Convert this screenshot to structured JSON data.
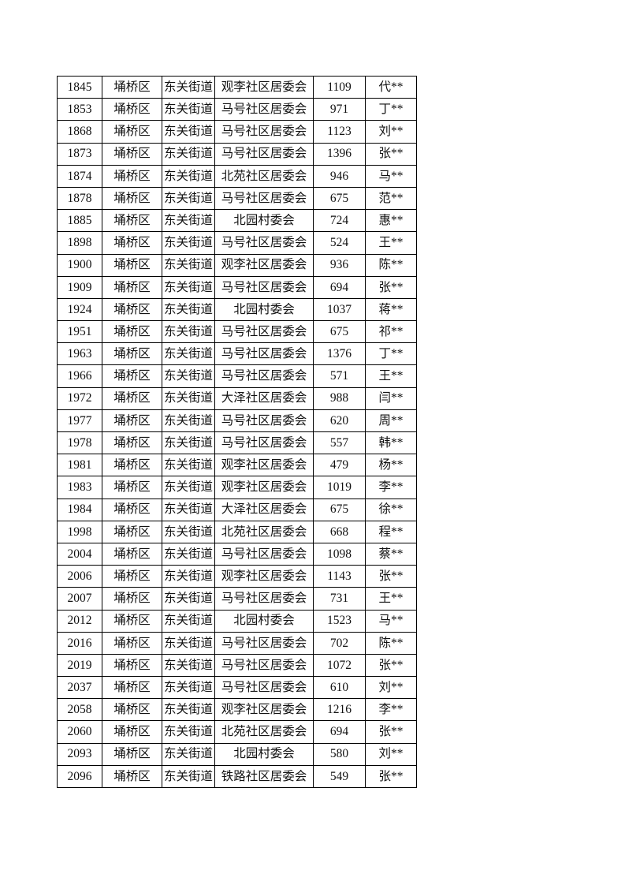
{
  "page": {
    "background_color": "#ffffff",
    "text_color": "#111111",
    "border_color": "#000000"
  },
  "table": {
    "column_names": [
      "serial-number",
      "district",
      "street",
      "community",
      "count",
      "masked-name"
    ],
    "rows": [
      [
        "1845",
        "埇桥区",
        "东关街道",
        "观李社区居委会",
        "1109",
        "代**"
      ],
      [
        "1853",
        "埇桥区",
        "东关街道",
        "马号社区居委会",
        "971",
        "丁**"
      ],
      [
        "1868",
        "埇桥区",
        "东关街道",
        "马号社区居委会",
        "1123",
        "刘**"
      ],
      [
        "1873",
        "埇桥区",
        "东关街道",
        "马号社区居委会",
        "1396",
        "张**"
      ],
      [
        "1874",
        "埇桥区",
        "东关街道",
        "北苑社区居委会",
        "946",
        "马**"
      ],
      [
        "1878",
        "埇桥区",
        "东关街道",
        "马号社区居委会",
        "675",
        "范**"
      ],
      [
        "1885",
        "埇桥区",
        "东关街道",
        "北园村委会",
        "724",
        "惠**"
      ],
      [
        "1898",
        "埇桥区",
        "东关街道",
        "马号社区居委会",
        "524",
        "王**"
      ],
      [
        "1900",
        "埇桥区",
        "东关街道",
        "观李社区居委会",
        "936",
        "陈**"
      ],
      [
        "1909",
        "埇桥区",
        "东关街道",
        "马号社区居委会",
        "694",
        "张**"
      ],
      [
        "1924",
        "埇桥区",
        "东关街道",
        "北园村委会",
        "1037",
        "蒋**"
      ],
      [
        "1951",
        "埇桥区",
        "东关街道",
        "马号社区居委会",
        "675",
        "祁**"
      ],
      [
        "1963",
        "埇桥区",
        "东关街道",
        "马号社区居委会",
        "1376",
        "丁**"
      ],
      [
        "1966",
        "埇桥区",
        "东关街道",
        "马号社区居委会",
        "571",
        "王**"
      ],
      [
        "1972",
        "埇桥区",
        "东关街道",
        "大泽社区居委会",
        "988",
        "闫**"
      ],
      [
        "1977",
        "埇桥区",
        "东关街道",
        "马号社区居委会",
        "620",
        "周**"
      ],
      [
        "1978",
        "埇桥区",
        "东关街道",
        "马号社区居委会",
        "557",
        "韩**"
      ],
      [
        "1981",
        "埇桥区",
        "东关街道",
        "观李社区居委会",
        "479",
        "杨**"
      ],
      [
        "1983",
        "埇桥区",
        "东关街道",
        "观李社区居委会",
        "1019",
        "李**"
      ],
      [
        "1984",
        "埇桥区",
        "东关街道",
        "大泽社区居委会",
        "675",
        "徐**"
      ],
      [
        "1998",
        "埇桥区",
        "东关街道",
        "北苑社区居委会",
        "668",
        "程**"
      ],
      [
        "2004",
        "埇桥区",
        "东关街道",
        "马号社区居委会",
        "1098",
        "蔡**"
      ],
      [
        "2006",
        "埇桥区",
        "东关街道",
        "观李社区居委会",
        "1143",
        "张**"
      ],
      [
        "2007",
        "埇桥区",
        "东关街道",
        "马号社区居委会",
        "731",
        "王**"
      ],
      [
        "2012",
        "埇桥区",
        "东关街道",
        "北园村委会",
        "1523",
        "马**"
      ],
      [
        "2016",
        "埇桥区",
        "东关街道",
        "马号社区居委会",
        "702",
        "陈**"
      ],
      [
        "2019",
        "埇桥区",
        "东关街道",
        "马号社区居委会",
        "1072",
        "张**"
      ],
      [
        "2037",
        "埇桥区",
        "东关街道",
        "马号社区居委会",
        "610",
        "刘**"
      ],
      [
        "2058",
        "埇桥区",
        "东关街道",
        "观李社区居委会",
        "1216",
        "李**"
      ],
      [
        "2060",
        "埇桥区",
        "东关街道",
        "北苑社区居委会",
        "694",
        "张**"
      ],
      [
        "2093",
        "埇桥区",
        "东关街道",
        "北园村委会",
        "580",
        "刘**"
      ],
      [
        "2096",
        "埇桥区",
        "东关街道",
        "铁路社区居委会",
        "549",
        "张**"
      ]
    ]
  }
}
